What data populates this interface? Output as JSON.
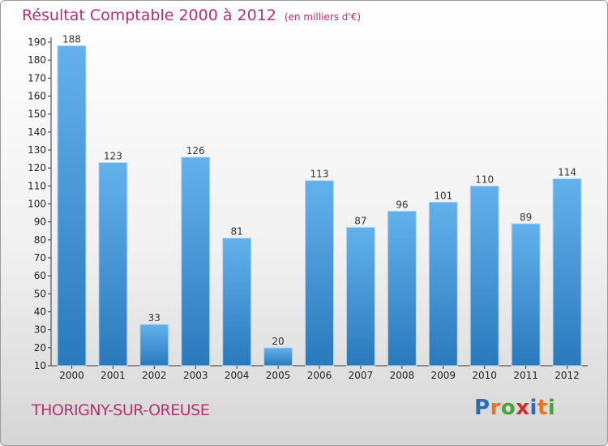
{
  "title": "Résultat Comptable 2000 à 2012",
  "unit": "(en milliers d'€)",
  "place": "THORIGNY-SUR-OREUSE",
  "logo": {
    "letters": [
      "P",
      "r",
      "o",
      "x",
      "i",
      "t",
      "i"
    ],
    "colors": [
      "#2d6bb5",
      "#e9741c",
      "#4aa33a",
      "#d32b2b",
      "#2d6bb5",
      "#e9741c",
      "#4aa33a"
    ]
  },
  "colors": {
    "bar_top": "#63b1ec",
    "bar_bottom": "#2a79bd",
    "title": "#b5306e"
  },
  "chart_data": {
    "type": "bar",
    "title": "Résultat Comptable 2000 à 2012",
    "categories": [
      "2000",
      "2001",
      "2002",
      "2003",
      "2004",
      "2005",
      "2006",
      "2007",
      "2008",
      "2009",
      "2010",
      "2011",
      "2012"
    ],
    "values": [
      188,
      123,
      33,
      126,
      81,
      20,
      113,
      87,
      96,
      101,
      110,
      89,
      114
    ],
    "ylim": [
      10,
      190
    ],
    "yticks": [
      10,
      20,
      30,
      40,
      50,
      60,
      70,
      80,
      90,
      100,
      110,
      120,
      130,
      140,
      150,
      160,
      170,
      180,
      190
    ],
    "grid": false,
    "legend": "none"
  }
}
